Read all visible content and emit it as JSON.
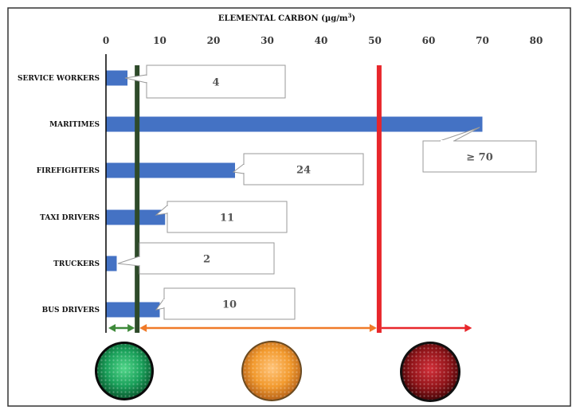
{
  "chart_data": {
    "type": "bar",
    "orientation": "horizontal",
    "title_main": "ELEMENTAL CARBON (µg/m",
    "title_sup": "3",
    "title_close": ")",
    "categories": [
      "SERVICE WORKERS",
      "MARITIMES",
      "FIREFIGHTERS",
      "TAXI DRIVERS",
      "TRUCKERS",
      "BUS DRIVERS"
    ],
    "values": [
      4,
      70,
      24,
      11,
      2,
      10
    ],
    "data_labels": [
      "4",
      "≥ 70",
      "24",
      "11",
      "2",
      "10"
    ],
    "xlim": [
      0,
      80
    ],
    "xticks": [
      0,
      10,
      20,
      30,
      40,
      50,
      60,
      70,
      80
    ],
    "x_axis_position": "top",
    "grid": false,
    "legend": "none",
    "reference_lines": [
      {
        "value": 5.8,
        "color": "#2e4a2a"
      },
      {
        "value": 50.8,
        "color": "#e8262b"
      }
    ],
    "zones": [
      {
        "from": 0,
        "to": 5.8,
        "color": "#3f8a3a",
        "light": "green"
      },
      {
        "from": 5.8,
        "to": 50.8,
        "color": "#f07a28",
        "light": "amber"
      },
      {
        "from": 50.8,
        "to": 68.5,
        "color": "#e8262b",
        "light": "red"
      }
    ],
    "colors": {
      "bar": "#4472c4",
      "axis": "#000000"
    }
  }
}
